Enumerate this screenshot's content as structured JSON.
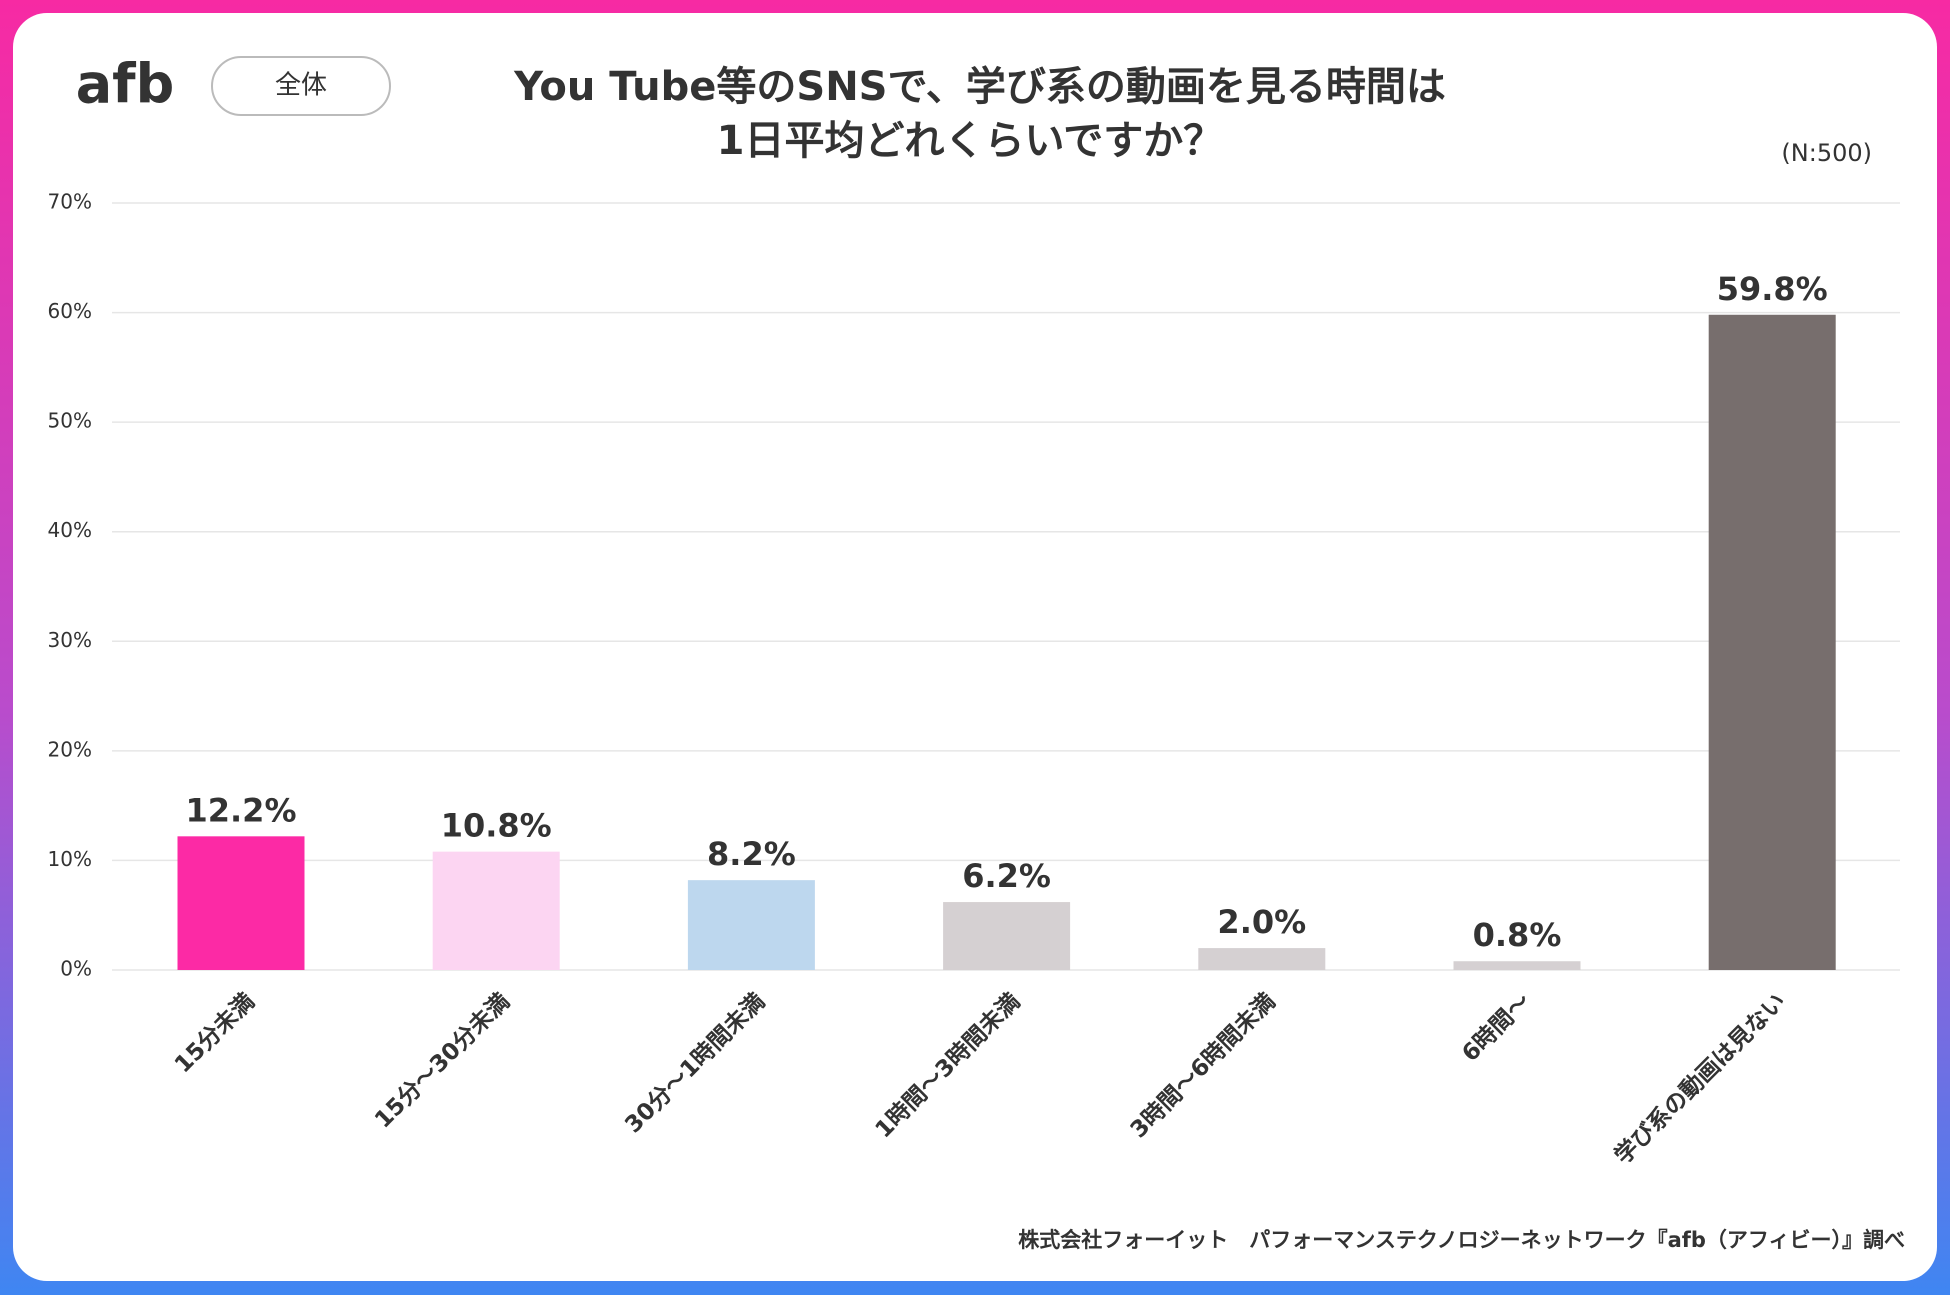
{
  "chart_data": {
    "type": "bar",
    "logo": "afb",
    "badge": "全体",
    "title": [
      "You Tube等のSNSで、学び系の動画を見る時間は",
      "1日平均どれくらいですか？"
    ],
    "sample_size": "(N:500)",
    "source": "株式会社フォーイット　パフォーマンステクノロジーネットワーク『afb（アフィビー）』調べ",
    "categories": [
      "15分未満",
      "15分〜30分未満",
      "30分〜1時間未満",
      "1時間〜3時間未満",
      "3時間〜6時間未満",
      "6時間〜",
      "学び系の動画は見ない"
    ],
    "values": [
      12.2,
      10.8,
      8.2,
      6.2,
      2.0,
      0.8,
      59.8
    ],
    "value_labels": [
      "12.2%",
      "10.8%",
      "8.2%",
      "6.2%",
      "2.0%",
      "0.8%",
      "59.8%"
    ],
    "colors": [
      "#fc2aa5",
      "#fcd5f2",
      "#bdd7ee",
      "#d5d0d2",
      "#d5d0d2",
      "#d5d0d2",
      "#776e6d"
    ],
    "ylim": [
      0,
      70
    ],
    "yticks": [
      {
        "value": 0,
        "label": "0%"
      },
      {
        "value": 10,
        "label": "10%"
      },
      {
        "value": 20,
        "label": "20%"
      },
      {
        "value": 30,
        "label": "30%"
      },
      {
        "value": 40,
        "label": "40%"
      },
      {
        "value": 50,
        "label": "50%"
      },
      {
        "value": 60,
        "label": "60%"
      },
      {
        "value": 70,
        "label": "70%"
      }
    ],
    "grid": true
  }
}
